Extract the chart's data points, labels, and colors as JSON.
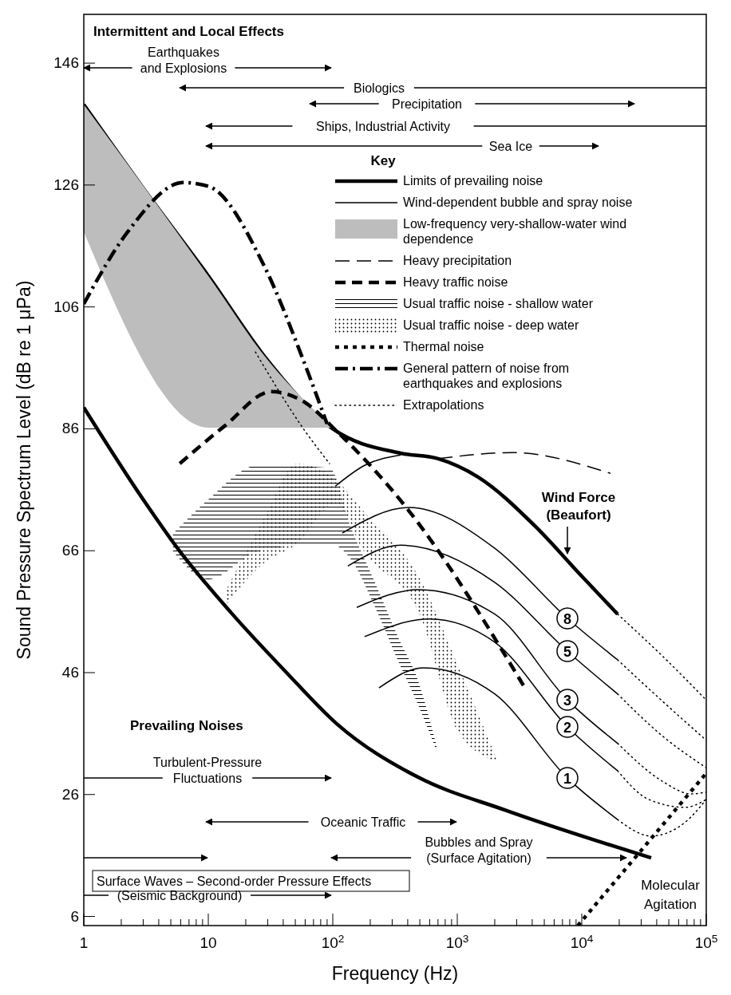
{
  "chart_data": {
    "type": "line",
    "xlabel": "Frequency (Hz)",
    "ylabel": "Sound Pressure Spectrum Level (dB re 1 μPa)",
    "log": "x",
    "xlim": [
      1,
      100000
    ],
    "ylim": [
      4.5,
      154
    ],
    "xticks": [
      1,
      10,
      {
        "value": 100,
        "label": "10$^{2}$"
      },
      {
        "value": 1000,
        "label": "10$^{3}$"
      },
      {
        "value": 10000,
        "label": "10$^{4}$"
      },
      {
        "value": 100000,
        "label": "10$^{5}$"
      },
      {
        "value": 2,
        "label": null
      },
      {
        "value": 3,
        "label": null
      },
      {
        "value": 4,
        "label": null
      },
      {
        "value": 5,
        "label": null
      },
      {
        "value": 6,
        "label": null
      },
      {
        "value": 7,
        "label": null
      },
      {
        "value": 8,
        "label": null
      },
      {
        "value": 9,
        "label": null
      },
      {
        "value": 20,
        "label": null
      },
      {
        "value": 30,
        "label": null
      },
      {
        "value": 40,
        "label": null
      },
      {
        "value": 50,
        "label": null
      },
      {
        "value": 60,
        "label": null
      },
      {
        "value": 70,
        "label": null
      },
      {
        "value": 80,
        "label": null
      },
      {
        "value": 90,
        "label": null
      },
      {
        "value": 200,
        "label": null
      },
      {
        "value": 300,
        "label": null
      },
      {
        "value": 400,
        "label": null
      },
      {
        "value": 500,
        "label": null
      },
      {
        "value": 600,
        "label": null
      },
      {
        "value": 700,
        "label": null
      },
      {
        "value": 800,
        "label": null
      },
      {
        "value": 900,
        "label": null
      },
      {
        "value": 2000,
        "label": null
      },
      {
        "value": 3000,
        "label": null
      },
      {
        "value": 4000,
        "label": null
      },
      {
        "value": 5000,
        "label": null
      },
      {
        "value": 6000,
        "label": null
      },
      {
        "value": 7000,
        "label": null
      },
      {
        "value": 8000,
        "label": null
      },
      {
        "value": 9000,
        "label": null
      },
      {
        "value": 20000,
        "label": null
      },
      {
        "value": 30000,
        "label": null
      },
      {
        "value": 40000,
        "label": null
      },
      {
        "value": 50000,
        "label": null
      },
      {
        "value": 60000,
        "label": null
      },
      {
        "value": 70000,
        "label": null
      },
      {
        "value": 80000,
        "label": null
      },
      {
        "value": 90000,
        "label": null
      }
    ],
    "yticks": [
      6,
      26,
      46,
      66,
      86,
      106,
      126,
      146
    ],
    "legend": "top right",
    "legend_title": "Key",
    "series": [
      {
        "name": "Limits of prevailing noise",
        "color": "#000000",
        "line_style": "solid",
        "x": [
          1,
          3,
          10,
          29.8,
          100,
          351,
          702,
          1468,
          4190,
          9710,
          19400
        ],
        "values": [
          139.2,
          125.5,
          111.1,
          97.3,
          86.0,
          82.0,
          81.1,
          78.1,
          70.1,
          62.1,
          55.6
        ]
      },
      {
        "name": "Wind-dependent bubble and spray noise",
        "color": "#000000",
        "line_style": "solid",
        "x": [
          105,
          180,
          351
        ],
        "values": [
          76.6,
          80.0,
          81.7
        ]
      },
      {
        "name": "Low-frequency very-shallow-water wind dependence",
        "color": "#bdbdbd",
        "line_style": "solid",
        "x": [
          1,
          10,
          30,
          100
        ],
        "values": [
          null,
          null,
          null,
          null
        ],
        "upper": [
          139.2,
          111.1,
          97.3,
          86.2
        ],
        "lower": [
          118.3,
          86.2,
          86.2,
          86.2
        ]
      },
      {
        "name": "Heavy precipitation",
        "color": "#000000",
        "line_style": "dashed",
        "x": [
          702,
          2730,
          17000
        ],
        "values": [
          81.1,
          82.1,
          78.7
        ]
      },
      {
        "name": "Heavy traffic noise",
        "color": "#000000",
        "line_style": "dashed",
        "x": [
          5.9,
          13.6,
          32,
          58,
          109,
          389,
          3400
        ],
        "values": [
          80.3,
          86.5,
          92.1,
          90.5,
          85.5,
          73.1,
          43.9
        ]
      },
      {
        "name": "Usual traffic noise - shallow water",
        "color": "#000000",
        "line_style": "hatched",
        "x": [
          5.2,
          10,
          25,
          94,
          140,
          219,
          340,
          478,
          681
        ],
        "values": [
          null,
          null,
          null,
          null,
          null,
          null,
          null,
          null,
          null
        ],
        "upper": [
          68.8,
          74.4,
          80.0,
          79.6,
          69.8,
          60.7,
          51.5,
          45.0,
          34.1
        ],
        "lower": [
          65.9,
          61.3,
          65.9,
          67.2,
          64.6,
          56.7,
          47.6,
          41.0,
          33.2
        ]
      },
      {
        "name": "Usual traffic noise - deep water",
        "color": "#000000",
        "line_style": "dotted",
        "x": [
          13.8,
          27.7,
          52,
          105,
          178,
          507,
          1010,
          2120
        ],
        "values": [
          null,
          null,
          null,
          null,
          null,
          null,
          null,
          null
        ],
        "upper": [
          59.4,
          71.1,
          80.3,
          77.7,
          72.4,
          61.2,
          47.2,
          31.3
        ],
        "lower": [
          57.1,
          63.9,
          67.2,
          73.7,
          65.9,
          55.2,
          36.4,
          31.3
        ]
      },
      {
        "name": "Thermal noise",
        "color": "#000000",
        "line_style": "dotted",
        "x": [
          9300,
          100000
        ],
        "values": [
          4.5,
          29.5
        ]
      },
      {
        "name": "General pattern of noise from earthquakes and explosions",
        "color": "#000000",
        "line_style": "dashdot",
        "x": [
          1,
          2.25,
          6.3,
          10,
          27.7,
          57.9,
          90
        ],
        "values": [
          106.5,
          118.3,
          126.4,
          125.8,
          113.0,
          97.3,
          86.8
        ]
      },
      {
        "name": "Extrapolations",
        "color": "#000000",
        "line_style": "dotted",
        "x": [
          23.9,
          60.5,
          94.2
        ],
        "values": [
          98.6,
          85.5,
          80.3
        ]
      },
      {
        "color": "#000000",
        "line_style": "solid",
        "x": [
          1,
          3,
          5.71,
          15.3,
          41.2,
          109,
          478,
          2460,
          36100
        ],
        "values": [
          89.5,
          74.4,
          66.3,
          55.8,
          46.3,
          37.5,
          28.9,
          23.4,
          15.6
        ]
      },
      {
        "color": "#000000",
        "line_style": "solid",
        "x": [
          119,
          412,
          2000,
          7670,
          19400
        ],
        "values": [
          68.9,
          73.1,
          66.4,
          54.9,
          48.1
        ]
      },
      {
        "color": "#000000",
        "line_style": "solid",
        "x": [
          132,
          351,
          2000,
          7670,
          19400
        ],
        "values": [
          63.5,
          66.9,
          60.8,
          49.5,
          42.5
        ]
      },
      {
        "color": "#000000",
        "line_style": "solid",
        "x": [
          156,
          485,
          2000,
          7670,
          19400
        ],
        "values": [
          56.7,
          59.6,
          55.6,
          41.5,
          34.4
        ]
      },
      {
        "color": "#000000",
        "line_style": "solid",
        "x": [
          180,
          597,
          2000,
          7670,
          19400
        ],
        "values": [
          51.9,
          54.8,
          51.0,
          37.1,
          29.9
        ]
      },
      {
        "color": "#000000",
        "line_style": "solid",
        "x": [
          235,
          538,
          2000,
          7670,
          19400
        ],
        "values": [
          43.5,
          46.8,
          42.5,
          28.7,
          21.9
        ]
      },
      {
        "color": "#000000",
        "line_style": "dotted",
        "x": [
          19400,
          45100,
          100000
        ],
        "values": [
          55.6,
          48.6,
          41.5
        ]
      },
      {
        "color": "#000000",
        "line_style": "dotted",
        "x": [
          19400,
          45100,
          100000
        ],
        "values": [
          48.1,
          41.2,
          34.9
        ]
      },
      {
        "color": "#000000",
        "line_style": "dotted",
        "x": [
          19400,
          45100,
          100000
        ],
        "values": [
          42.5,
          35.5,
          30.4
        ]
      },
      {
        "color": "#000000",
        "line_style": "dotted",
        "x": [
          19400,
          45100,
          75500,
          100000
        ],
        "values": [
          34.4,
          28.1,
          26.1,
          26.4
        ]
      },
      {
        "color": "#000000",
        "line_style": "dotted",
        "x": [
          19400,
          34500,
          68100,
          100000
        ],
        "values": [
          29.9,
          25.2,
          23.9,
          25.2
        ]
      },
      {
        "color": "#000000",
        "line_style": "dotted",
        "x": [
          19400,
          36100,
          68100,
          100000
        ],
        "values": [
          21.9,
          19.2,
          21.5,
          25.2
        ]
      }
    ],
    "annotations": [
      "Intermittent and Local Effects",
      "Earthquakes and Explosions",
      "Biologics",
      "Precipitation",
      "Ships, Industrial Activity",
      "Sea Ice",
      "Prevailing Noises",
      "Turbulent-Pressure Fluctuations",
      "Oceanic Traffic",
      "Bubbles and Spray (Surface Agitation)",
      "Surface Waves – Second-order Pressure Effects",
      "(Seismic Background)",
      "Wind Force (Beaufort)",
      "8",
      "5",
      "3",
      "2",
      "1",
      "Molecular Agitation"
    ]
  }
}
